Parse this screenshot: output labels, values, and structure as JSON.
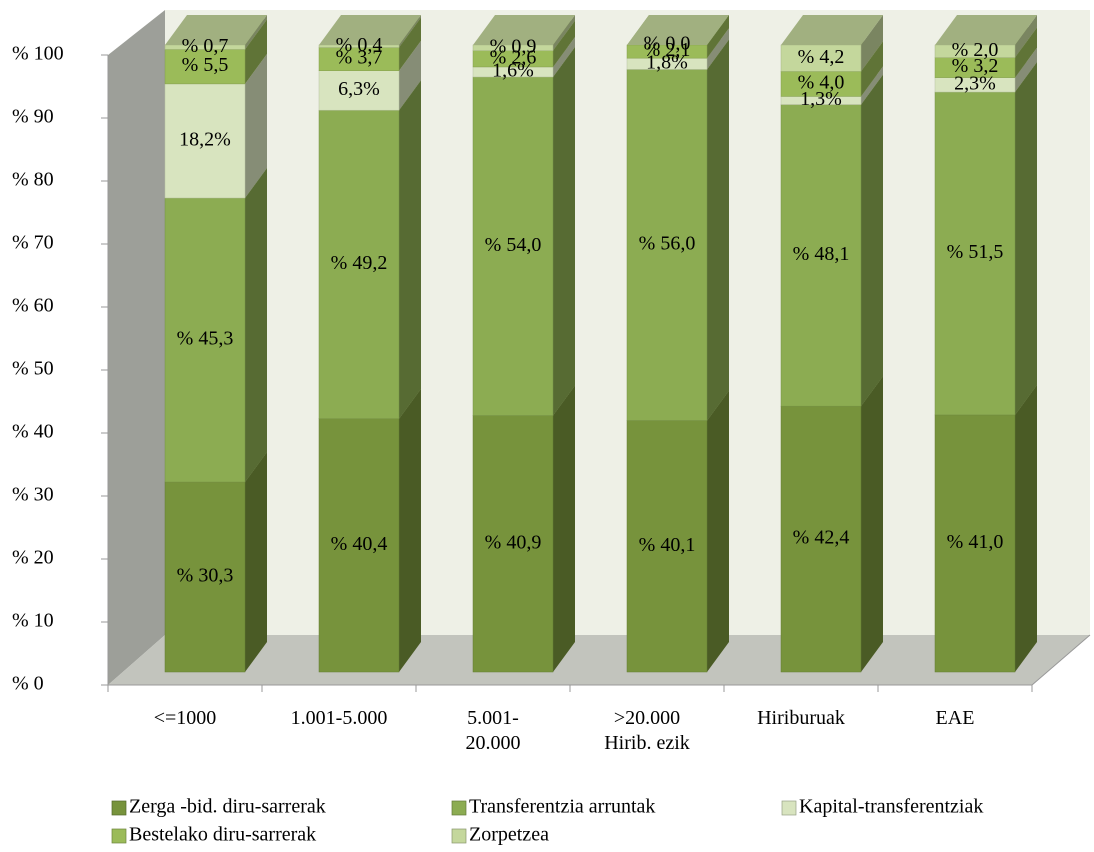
{
  "chart_data": {
    "type": "bar3d-stacked",
    "categories": [
      "<=1000",
      "1.001-5.000",
      "5.001-\n20.000",
      ">20.000\nHirib. ezik",
      "Hiriburuak",
      "EAE"
    ],
    "series": [
      {
        "name": "Zerga -bid. diru-sarrerak",
        "color": "#77933c",
        "values": [
          30.3,
          40.4,
          40.9,
          40.1,
          42.4,
          41.0
        ],
        "value_labels": [
          "% 30,3",
          "% 40,4",
          "% 40,9",
          "% 40,1",
          "% 42,4",
          "% 41,0"
        ]
      },
      {
        "name": "Transferentzia arruntak",
        "color": "#8cac52",
        "values": [
          45.3,
          49.2,
          54.0,
          56.0,
          48.1,
          51.5
        ],
        "value_labels": [
          "% 45,3",
          "% 49,2",
          "% 54,0",
          "% 56,0",
          "% 48,1",
          "% 51,5"
        ]
      },
      {
        "name": "Kapital-transferentziak",
        "color": "#d8e4bf",
        "values": [
          18.2,
          6.3,
          1.6,
          1.8,
          1.3,
          2.3
        ],
        "value_labels": [
          "18,2%",
          "6,3%",
          "1,6%",
          "1,8%",
          "1,3%",
          "2,3%"
        ]
      },
      {
        "name": "Bestelako diru-sarrerak",
        "color": "#9bbb59",
        "values": [
          5.5,
          3.7,
          2.6,
          2.1,
          4.0,
          3.2
        ],
        "value_labels": [
          "% 5,5",
          "% 3,7",
          "% 2,6",
          "% 2,1",
          "% 4,0",
          "% 3,2"
        ]
      },
      {
        "name": "Zorpetzea",
        "color": "#c4d79c",
        "values": [
          0.7,
          0.4,
          0.9,
          0.0,
          4.2,
          2.0
        ],
        "value_labels": [
          "% 0,7",
          "% 0,4",
          "% 0,9",
          "% 0,0",
          "% 4,2",
          "% 2,0"
        ]
      }
    ],
    "ylim": [
      0,
      100
    ],
    "yticks": [
      {
        "value": 0,
        "label": "% 0"
      },
      {
        "value": 10,
        "label": "% 10"
      },
      {
        "value": 20,
        "label": "% 20"
      },
      {
        "value": 30,
        "label": "% 30"
      },
      {
        "value": 40,
        "label": "% 40"
      },
      {
        "value": 50,
        "label": "% 50"
      },
      {
        "value": 60,
        "label": "% 60"
      },
      {
        "value": 70,
        "label": "% 70"
      },
      {
        "value": 80,
        "label": "% 80"
      },
      {
        "value": 90,
        "label": "% 90"
      },
      {
        "value": 100,
        "label": "% 100"
      }
    ],
    "legend": "bottom"
  }
}
